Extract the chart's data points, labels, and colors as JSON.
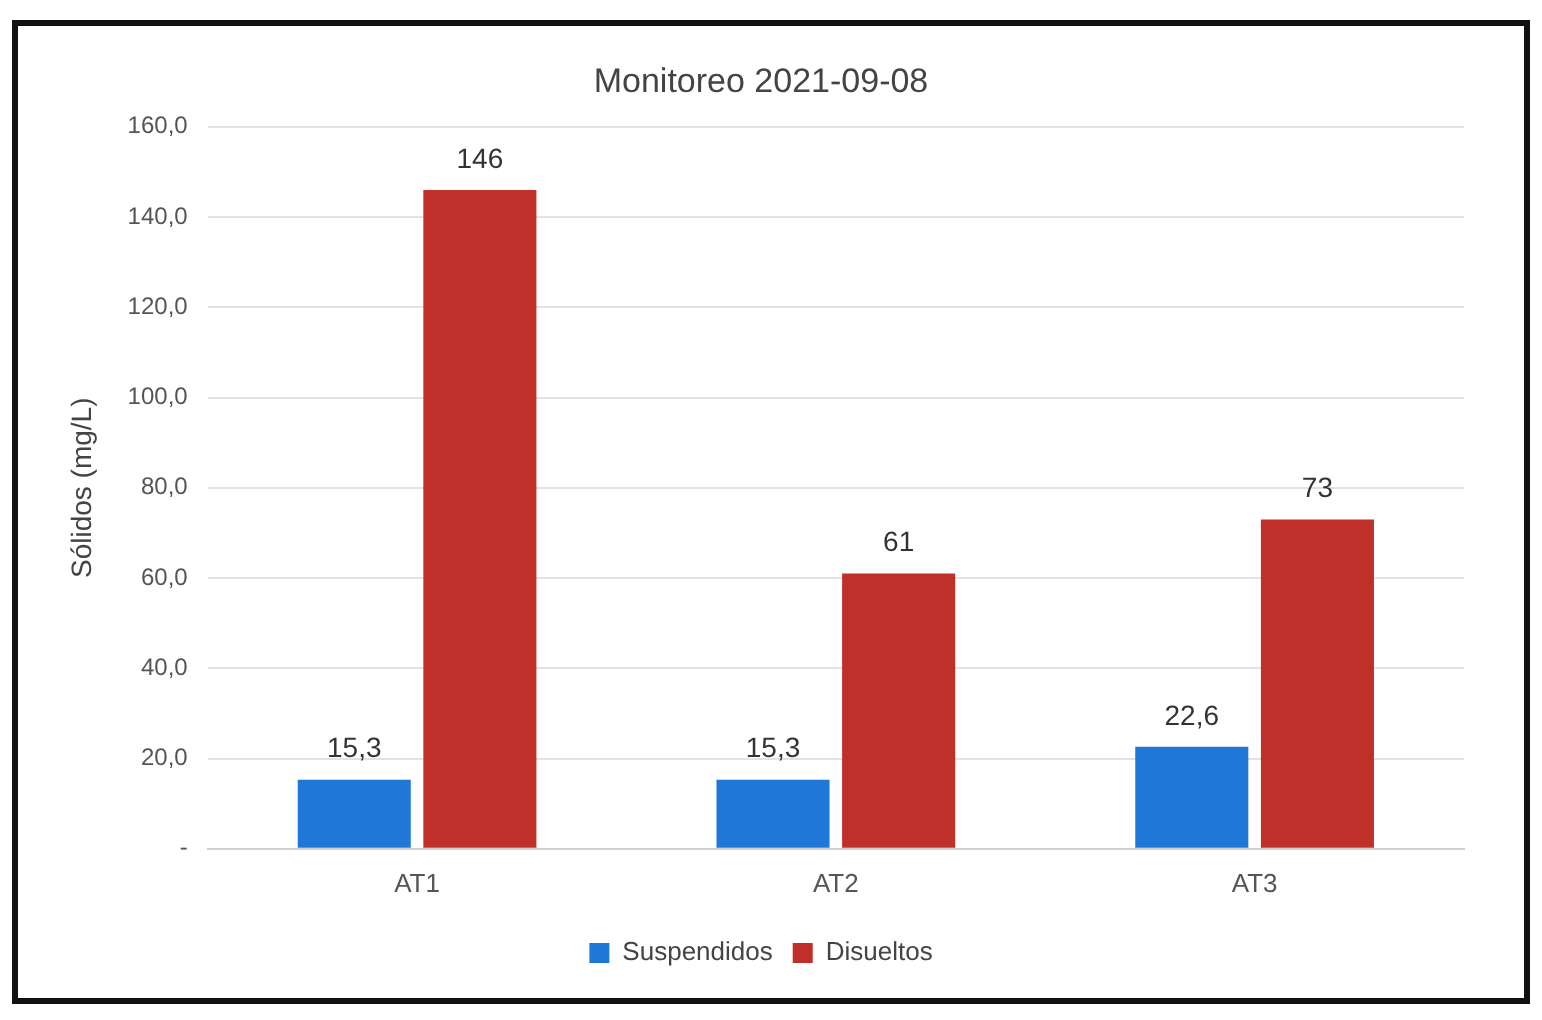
{
  "chart_data": {
    "type": "bar",
    "title": "Monitoreo 2021-09-08",
    "ylabel": "Sólidos (mg/L)",
    "categories": [
      "AT1",
      "AT2",
      "AT3"
    ],
    "series": [
      {
        "name": "Suspendidos",
        "color": "#1f78d8",
        "values": [
          15.3,
          15.3,
          22.6
        ],
        "value_labels": [
          "15,3",
          "15,3",
          "22,6"
        ]
      },
      {
        "name": "Disueltos",
        "color": "#c0302a",
        "values": [
          146,
          61,
          73
        ],
        "value_labels": [
          "146",
          "61",
          "73"
        ]
      }
    ],
    "ylim": [
      0,
      160
    ],
    "yticks": [
      {
        "value": 0,
        "label": "-"
      },
      {
        "value": 20,
        "label": "20,0"
      },
      {
        "value": 40,
        "label": "40,0"
      },
      {
        "value": 60,
        "label": "60,0"
      },
      {
        "value": 80,
        "label": "80,0"
      },
      {
        "value": 100,
        "label": "100,0"
      },
      {
        "value": 120,
        "label": "120,0"
      },
      {
        "value": 140,
        "label": "140,0"
      },
      {
        "value": 160,
        "label": "160,0"
      }
    ],
    "grid": "y",
    "legend": "bottom"
  }
}
